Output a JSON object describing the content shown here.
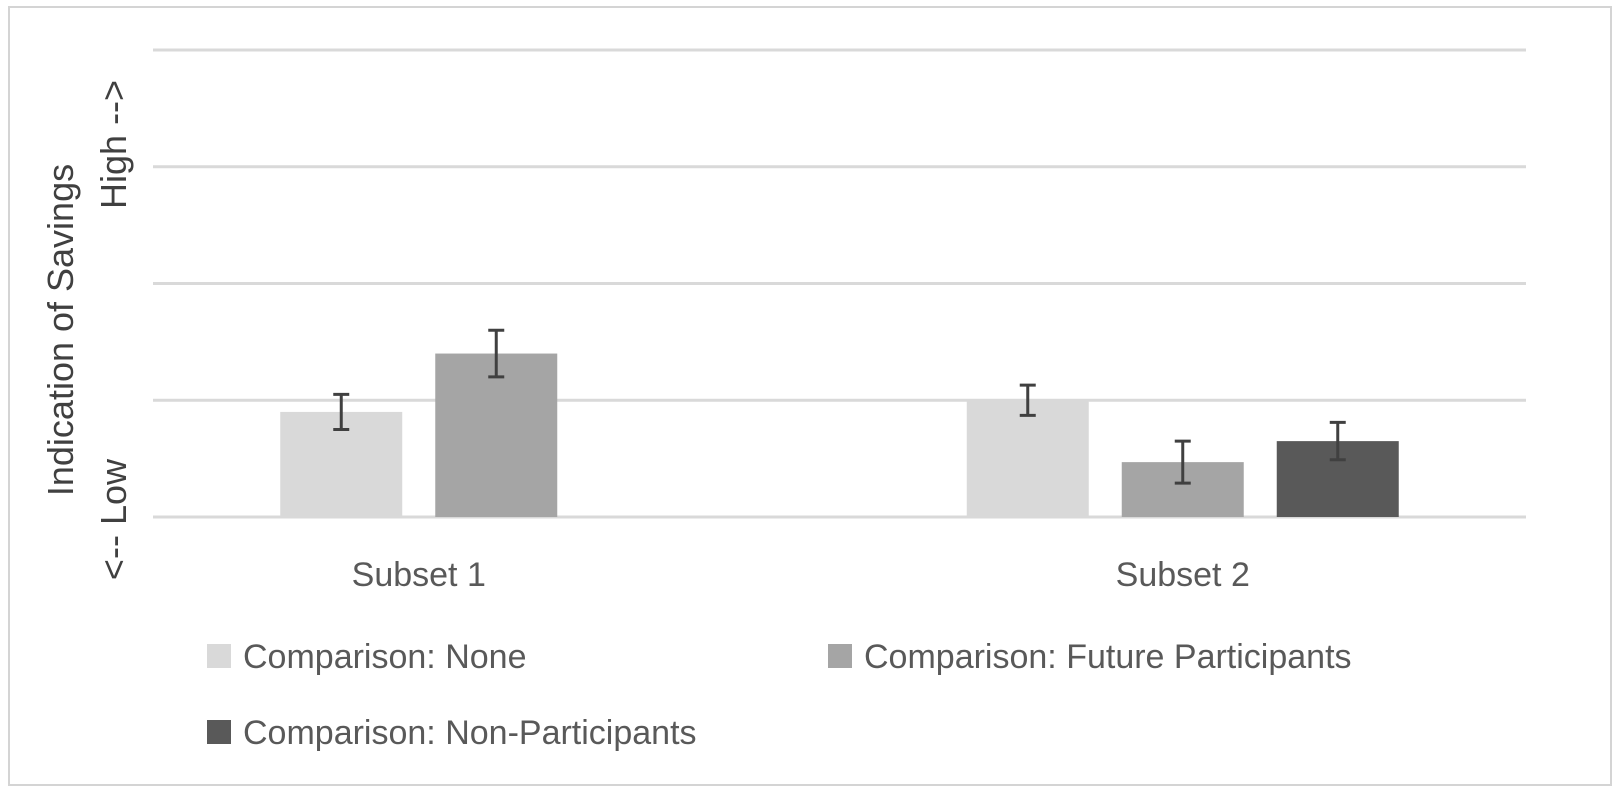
{
  "chart_data": {
    "type": "bar",
    "categories": [
      "Subset 1",
      "Subset 2"
    ],
    "series": [
      {
        "name": "Comparison: None",
        "color": "#d9d9d9",
        "values": [
          0.9,
          1.0
        ],
        "error": [
          0.15,
          0.13
        ]
      },
      {
        "name": "Comparison: Future Participants",
        "color": "#a5a5a5",
        "values": [
          1.4,
          0.47
        ],
        "error": [
          0.2,
          0.18
        ]
      },
      {
        "name": "Comparison: Non-Participants",
        "color": "#595959",
        "values": [
          null,
          0.65
        ],
        "error": [
          null,
          0.16
        ]
      }
    ],
    "ylabel_line1": "Indication of Savings",
    "ylabel_line2": "<-- Low                         High -->",
    "ylim": [
      0,
      4
    ],
    "yticks": [
      0,
      1,
      2,
      3,
      4
    ],
    "grid": true,
    "legend_position": "bottom"
  }
}
